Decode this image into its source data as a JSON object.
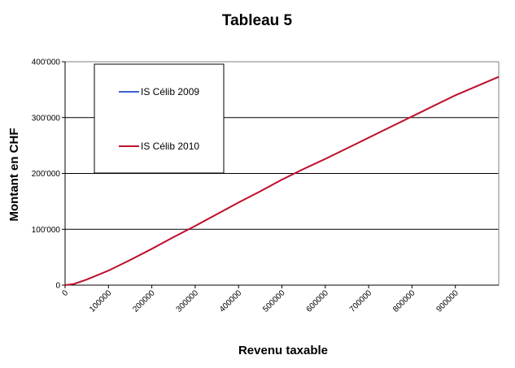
{
  "chart_data": {
    "type": "line",
    "title": "Tableau 5",
    "xlabel": "Revenu taxable",
    "ylabel": "Montant en CHF",
    "xlim": [
      0,
      1000000
    ],
    "ylim": [
      0,
      400000
    ],
    "x_ticks": [
      "0",
      "100000",
      "200000",
      "300000",
      "400000",
      "500000",
      "600000",
      "700000",
      "800000",
      "900000"
    ],
    "y_ticks": [
      "0",
      "100'000",
      "200'000",
      "300'000",
      "400'000"
    ],
    "grid": "horizontal",
    "legend_position": "top-left",
    "series": [
      {
        "name": "IS Célib 2009",
        "color": "#3a5fcd",
        "x": [
          0,
          20000,
          50000,
          100000,
          150000,
          200000,
          250000,
          300000,
          350000,
          400000,
          450000,
          500000,
          550000,
          600000,
          650000,
          700000,
          750000,
          800000,
          850000,
          900000,
          1000000
        ],
        "y": [
          0,
          2000,
          10000,
          26000,
          45000,
          65000,
          86000,
          106000,
          127000,
          148000,
          168000,
          189000,
          208000,
          226000,
          245000,
          264000,
          283000,
          302000,
          321000,
          340000,
          373000
        ]
      },
      {
        "name": "IS Célib 2010",
        "color": "#c0102a",
        "x": [
          0,
          20000,
          50000,
          100000,
          150000,
          200000,
          250000,
          300000,
          350000,
          400000,
          450000,
          500000,
          550000,
          600000,
          650000,
          700000,
          750000,
          800000,
          850000,
          900000,
          1000000
        ],
        "y": [
          0,
          2000,
          10000,
          26000,
          45000,
          65000,
          86000,
          106000,
          127000,
          148000,
          168000,
          189000,
          208000,
          226000,
          245000,
          264000,
          283000,
          302000,
          321000,
          340000,
          373000
        ]
      }
    ]
  }
}
